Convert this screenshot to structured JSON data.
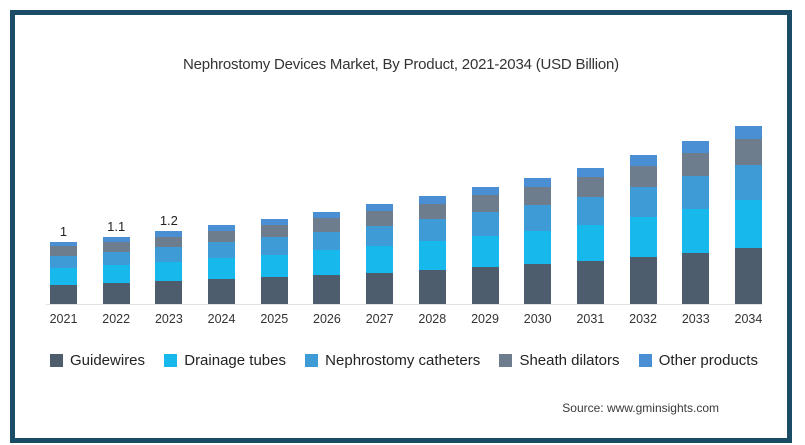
{
  "title": "Nephrostomy Devices Market, By Product, 2021-2034 (USD Billion)",
  "source": "Source: www.gminsights.com",
  "colors": {
    "frame_border": "#1b4c66",
    "axis_line": "#e2e2e2",
    "title_text": "#333333"
  },
  "chart_data": {
    "type": "bar",
    "stacked": true,
    "title": "Nephrostomy Devices Market, By Product, 2021-2034 (USD Billion)",
    "xlabel": "",
    "ylabel": "",
    "ylim": [
      0,
      3
    ],
    "grid": false,
    "legend_position": "bottom",
    "categories": [
      "2021",
      "2022",
      "2023",
      "2024",
      "2025",
      "2026",
      "2027",
      "2028",
      "2029",
      "2030",
      "2031",
      "2032",
      "2033",
      "2034"
    ],
    "bar_labels": [
      "1",
      "1.1",
      "1.2",
      "",
      "",
      "",
      "",
      "",
      "",
      "",
      "",
      "",
      "",
      ""
    ],
    "estimated_totals": [
      1.0,
      1.08,
      1.17,
      1.27,
      1.37,
      1.48,
      1.6,
      1.73,
      1.88,
      2.02,
      2.18,
      2.38,
      2.6,
      2.84
    ],
    "series": [
      {
        "name": "Guidewires",
        "color": "#4e5d6d",
        "values": [
          0.32,
          0.346,
          0.374,
          0.406,
          0.438,
          0.474,
          0.512,
          0.554,
          0.602,
          0.646,
          0.698,
          0.762,
          0.832,
          0.909
        ]
      },
      {
        "name": "Drainage tubes",
        "color": "#17b8ec",
        "values": [
          0.265,
          0.286,
          0.31,
          0.337,
          0.363,
          0.392,
          0.424,
          0.458,
          0.498,
          0.535,
          0.578,
          0.631,
          0.689,
          0.753
        ]
      },
      {
        "name": "Nephrostomy catheters",
        "color": "#3e9bd6",
        "values": [
          0.2,
          0.216,
          0.234,
          0.254,
          0.274,
          0.296,
          0.32,
          0.346,
          0.376,
          0.404,
          0.436,
          0.476,
          0.52,
          0.568
        ]
      },
      {
        "name": "Sheath dilators",
        "color": "#6e7d8d",
        "values": [
          0.145,
          0.157,
          0.17,
          0.184,
          0.199,
          0.215,
          0.232,
          0.251,
          0.273,
          0.293,
          0.316,
          0.345,
          0.377,
          0.412
        ]
      },
      {
        "name": "Other products",
        "color": "#4a8fd4",
        "values": [
          0.07,
          0.076,
          0.082,
          0.089,
          0.096,
          0.104,
          0.112,
          0.121,
          0.132,
          0.141,
          0.153,
          0.167,
          0.182,
          0.199
        ]
      }
    ]
  }
}
